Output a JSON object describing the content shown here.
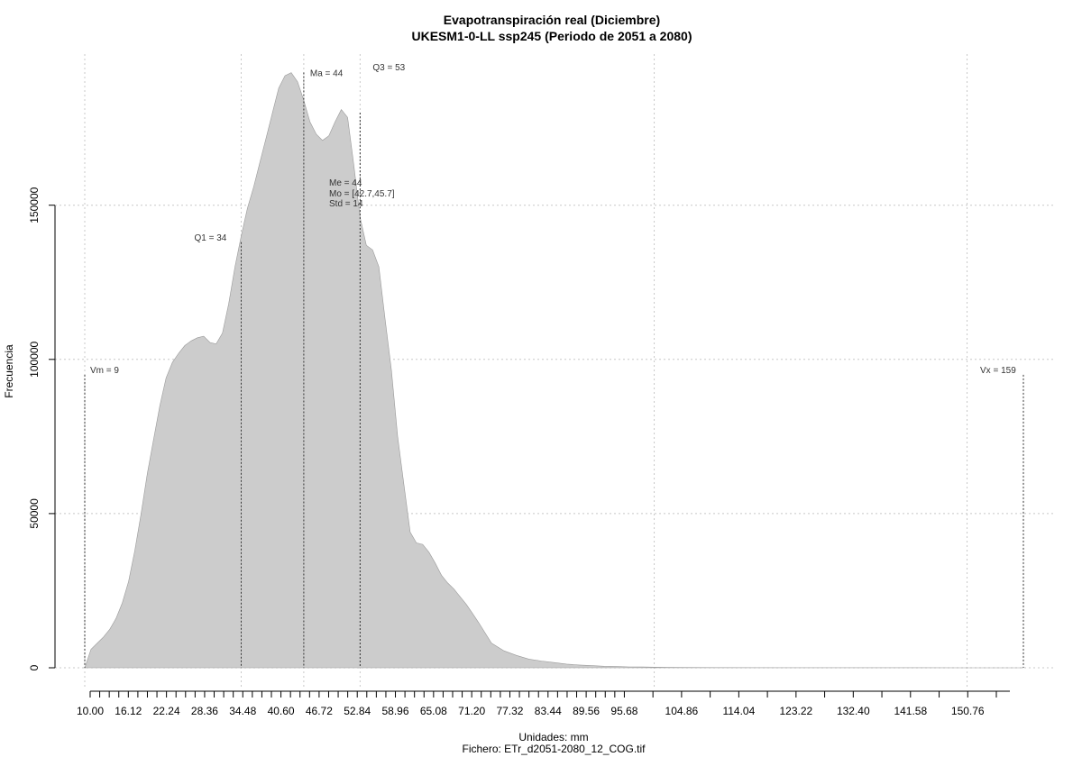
{
  "chart_data": {
    "type": "area",
    "title": "Evapotranspiración real (Diciembre)",
    "subtitle": "UKESM1-0-LL ssp245 (Periodo de 2051 a 2080)",
    "xlabel": "Unidades: mm",
    "caption": "Fichero: ETr_d2051-2080_12_COG.tif",
    "ylabel": "Frecuencia",
    "xlim": [
      9,
      159
    ],
    "ylim": [
      0,
      193000
    ],
    "grid": true,
    "fill_color": "#cccccc",
    "x_ticks": [
      10,
      11.53,
      13.06,
      14.59,
      16.12,
      17.65,
      19.18,
      20.71,
      22.24,
      23.77,
      25.3,
      26.83,
      28.36,
      29.89,
      31.42,
      32.95,
      34.48,
      36.01,
      37.54,
      39.07,
      40.6,
      42.13,
      43.66,
      45.19,
      46.72,
      48.25,
      49.78,
      51.31,
      52.84,
      54.37,
      55.9,
      57.43,
      58.96,
      60.49,
      62.02,
      63.55,
      65.08,
      66.61,
      68.14,
      69.67,
      71.2,
      72.73,
      74.26,
      75.79,
      77.32,
      78.85,
      80.38,
      81.91,
      83.44,
      84.97,
      86.5,
      88.03,
      89.56,
      91.09,
      92.62,
      94.15,
      95.68,
      100.27,
      104.86,
      109.45,
      114.04,
      118.63,
      123.22,
      127.81,
      132.4,
      136.99,
      141.58,
      146.17,
      150.76,
      155.35
    ],
    "x_tick_labels": [
      "10.00",
      "16.12",
      "22.24",
      "28.36",
      "34.48",
      "40.60",
      "46.72",
      "52.84",
      "58.96",
      "65.08",
      "71.20",
      "77.32",
      "83.44",
      "89.56",
      "95.68",
      "104.86",
      "114.04",
      "123.22",
      "132.40",
      "141.58",
      "150.76"
    ],
    "x_tick_label_values": [
      10,
      16.12,
      22.24,
      28.36,
      34.48,
      40.6,
      46.72,
      52.84,
      58.96,
      65.08,
      71.2,
      77.32,
      83.44,
      89.56,
      95.68,
      104.86,
      114.04,
      123.22,
      132.4,
      141.58,
      150.76
    ],
    "y_ticks": [
      0,
      50000,
      100000,
      150000
    ],
    "y_tick_labels": [
      "0",
      "50000",
      "100000",
      "150000"
    ],
    "x_grid": [
      9,
      34,
      44,
      53,
      100,
      150
    ],
    "y_grid": [
      0,
      50000,
      100000,
      150000
    ],
    "x": [
      9,
      9.5,
      10,
      11,
      12,
      13,
      14,
      15,
      16,
      17,
      18,
      19,
      20,
      21,
      22,
      23,
      24,
      25,
      26,
      27,
      28,
      29,
      30,
      31,
      32,
      33,
      34,
      35,
      36,
      37,
      38,
      39,
      40,
      41,
      42,
      43,
      44,
      45,
      46,
      47,
      48,
      49,
      50,
      51,
      52,
      53,
      54,
      55,
      56,
      57,
      58,
      59,
      60,
      61,
      62,
      63,
      64,
      65,
      66,
      67,
      68,
      69,
      70,
      71,
      72,
      74,
      76,
      78,
      80,
      82,
      84,
      86,
      88,
      90,
      92,
      94,
      96,
      98,
      100,
      102,
      105,
      110,
      120,
      130,
      140,
      150,
      159
    ],
    "y": [
      0,
      3000,
      6000,
      8000,
      10000,
      12500,
      16000,
      21000,
      28000,
      38000,
      50000,
      63000,
      74000,
      85000,
      94000,
      99000,
      102000,
      104500,
      106000,
      107000,
      107500,
      105500,
      105000,
      108500,
      118000,
      130000,
      140000,
      149000,
      156000,
      164000,
      172000,
      180000,
      188000,
      192000,
      193000,
      190000,
      184000,
      177000,
      173000,
      171000,
      172500,
      177000,
      181000,
      178500,
      163000,
      146000,
      137000,
      135500,
      130000,
      113000,
      96500,
      75000,
      59500,
      44000,
      40500,
      40000,
      37500,
      34000,
      30000,
      27500,
      25500,
      23000,
      20500,
      17500,
      14500,
      8000,
      5500,
      4000,
      2800,
      2200,
      1700,
      1200,
      900,
      700,
      500,
      400,
      300,
      250,
      200,
      150,
      100,
      60,
      40,
      30,
      20,
      10,
      0
    ],
    "markers": [
      {
        "label": "Vm = 9",
        "x": 9,
        "top": 95000
      },
      {
        "label": "Q1 = 34",
        "x": 34,
        "top": 138000
      },
      {
        "label": "Ma = 44",
        "x": 44,
        "top": 193000
      },
      {
        "label": "Q3 = 53",
        "x": 53,
        "top": 180000
      },
      {
        "label": "Vx = 159",
        "x": 159,
        "top": 95000
      }
    ],
    "stats": [
      "Me = 44",
      "Mo = [42.7,45.7]",
      "Std = 14"
    ]
  }
}
